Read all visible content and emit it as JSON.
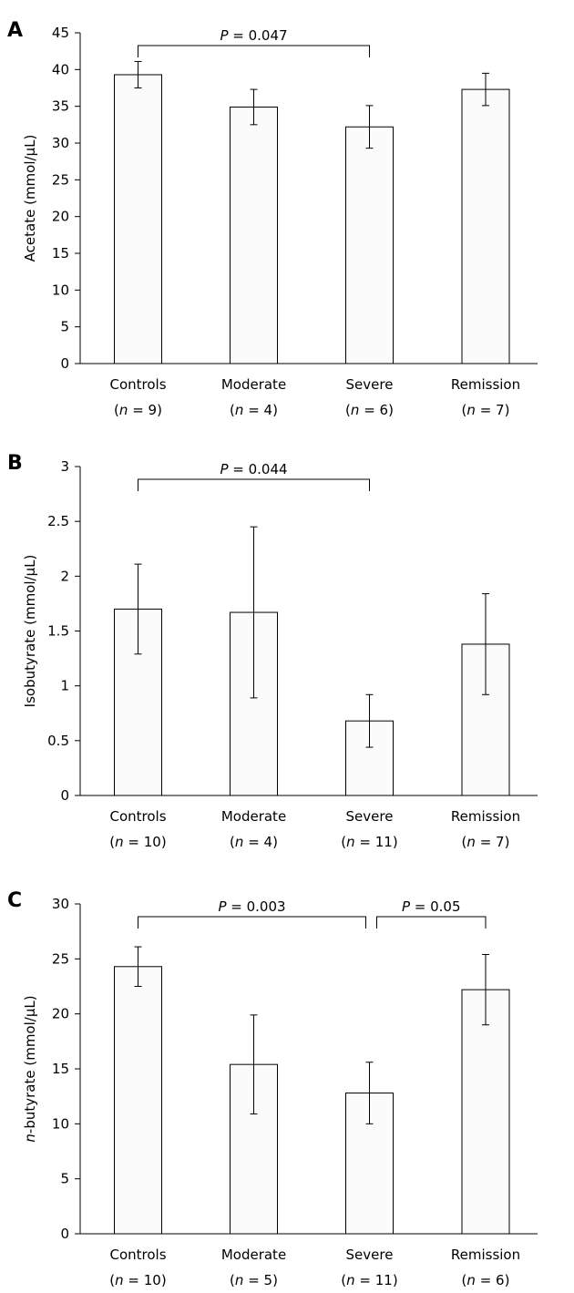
{
  "chart_data": [
    {
      "panel": "A",
      "type": "bar",
      "ylabel": {
        "prefix": "",
        "prefix_italic": false,
        "text": "Acetate (mmol/μL)"
      },
      "ylim": [
        0,
        45
      ],
      "yticks": [
        0,
        5,
        10,
        15,
        20,
        25,
        30,
        35,
        40,
        45
      ],
      "categories": [
        "Controls",
        "Moderate",
        "Severe",
        "Remission"
      ],
      "n_labels": [
        "9",
        "4",
        "6",
        "7"
      ],
      "values": [
        39.3,
        34.9,
        32.2,
        37.3
      ],
      "errors": [
        1.8,
        2.4,
        2.9,
        2.2
      ],
      "significance": [
        {
          "from": 0,
          "to": 2,
          "label": "0.047"
        }
      ]
    },
    {
      "panel": "B",
      "type": "bar",
      "ylabel": {
        "prefix": "",
        "prefix_italic": false,
        "text": "Isobutyrate (mmol/μL)"
      },
      "ylim": [
        0,
        3
      ],
      "yticks": [
        0,
        0.5,
        1,
        1.5,
        2,
        2.5,
        3
      ],
      "categories": [
        "Controls",
        "Moderate",
        "Severe",
        "Remission"
      ],
      "n_labels": [
        "10",
        "4",
        "11",
        "7"
      ],
      "values": [
        1.7,
        1.67,
        0.68,
        1.38
      ],
      "errors": [
        0.41,
        0.78,
        0.24,
        0.46
      ],
      "significance": [
        {
          "from": 0,
          "to": 2,
          "label": "0.044"
        }
      ]
    },
    {
      "panel": "C",
      "type": "bar",
      "ylabel": {
        "prefix": "n",
        "prefix_italic": true,
        "text": "-butyrate (mmol/μL)"
      },
      "ylim": [
        0,
        30
      ],
      "yticks": [
        0,
        5,
        10,
        15,
        20,
        25,
        30
      ],
      "categories": [
        "Controls",
        "Moderate",
        "Severe",
        "Remission"
      ],
      "n_labels": [
        "10",
        "5",
        "11",
        "6"
      ],
      "values": [
        24.3,
        15.4,
        12.8,
        22.2
      ],
      "errors": [
        1.8,
        4.5,
        2.8,
        3.2
      ],
      "significance": [
        {
          "from": 0,
          "to": 2,
          "label": "0.003"
        },
        {
          "from": 2,
          "to": 3,
          "label": "0.05"
        }
      ]
    }
  ]
}
